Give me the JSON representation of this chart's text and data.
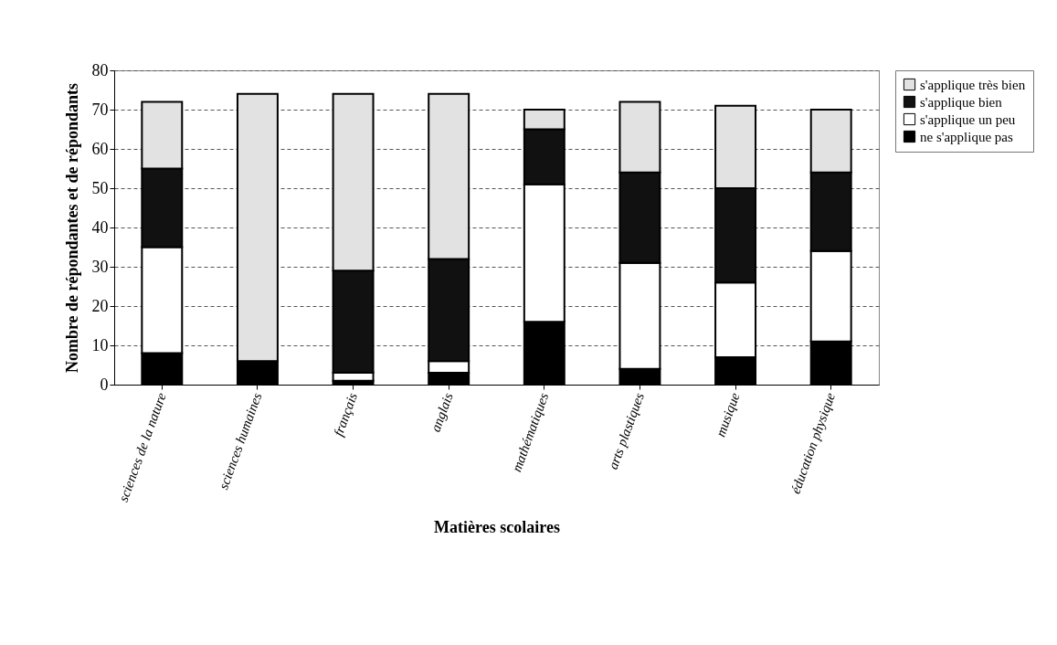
{
  "chart_data": {
    "type": "bar",
    "stacked": true,
    "xlabel": "Matières scolaires",
    "ylabel": "Nombre de répondantes et de répondants",
    "categories": [
      "sciences de la nature",
      "sciences humaines",
      "français",
      "anglais",
      "mathématiques",
      "arts plastiques",
      "musique",
      "éducation physique"
    ],
    "series": [
      {
        "name": "ne s'applique pas",
        "color": "#000000",
        "values": [
          8,
          6,
          1,
          3,
          16,
          4,
          7,
          11
        ]
      },
      {
        "name": "s'applique un peu",
        "color": "#ffffff",
        "values": [
          27,
          null,
          2,
          3,
          35,
          27,
          19,
          23
        ]
      },
      {
        "name": "s'applique bien",
        "color": "#111111",
        "values": [
          20,
          null,
          26,
          26,
          14,
          23,
          24,
          20
        ]
      },
      {
        "name": "s'applique très bien",
        "color": "#e2e2e2",
        "values": [
          17,
          68,
          45,
          42,
          5,
          18,
          21,
          16
        ]
      }
    ],
    "ylim": [
      0,
      80
    ],
    "yticks": [
      0,
      10,
      20,
      30,
      40,
      50,
      60,
      70,
      80
    ],
    "grid": "y",
    "legend": "right"
  }
}
